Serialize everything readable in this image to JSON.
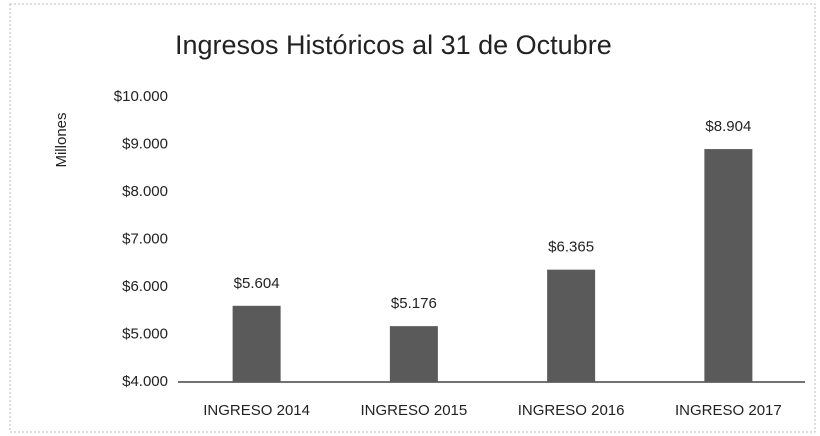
{
  "chart_data": {
    "type": "bar",
    "title": "Ingresos Históricos al 31 de Octubre",
    "y_label": "Millones",
    "categories": [
      "INGRESO 2014",
      "INGRESO 2015",
      "INGRESO 2016",
      "INGRESO 2017"
    ],
    "values": [
      5604,
      5176,
      6365,
      8904
    ],
    "value_labels": [
      "$5.604",
      "$5.176",
      "$6.365",
      "$8.904"
    ],
    "color": "#5a5a5a",
    "ylim": [
      4000,
      10000
    ],
    "yticks": [
      {
        "value": 4000,
        "label": "$4.000"
      },
      {
        "value": 5000,
        "label": "$5.000"
      },
      {
        "value": 6000,
        "label": "$6.000"
      },
      {
        "value": 7000,
        "label": "$7.000"
      },
      {
        "value": 8000,
        "label": "$8.000"
      },
      {
        "value": 9000,
        "label": "$9.000"
      },
      {
        "value": 10000,
        "label": "$10.000"
      }
    ],
    "grid": false
  }
}
